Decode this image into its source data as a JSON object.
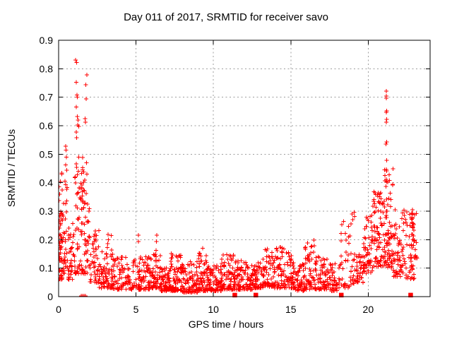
{
  "chart": {
    "title": "Day 011 of 2017, SRMTID for receiver savo",
    "xlabel": "GPS time / hours",
    "ylabel": "SRMTID / TECUs"
  },
  "chart_data": {
    "type": "scatter",
    "title": "Day 011 of 2017, SRMTID for receiver savo",
    "xlabel": "GPS time / hours",
    "ylabel": "SRMTID / TECUs",
    "xlim": [
      0,
      24
    ],
    "ylim": [
      0,
      0.9
    ],
    "x_tick_values": [
      0,
      5,
      10,
      15,
      20
    ],
    "x_tick_labels": [
      "0",
      "5",
      "10",
      "15",
      "20"
    ],
    "y_tick_values": [
      0,
      0.1,
      0.2,
      0.3,
      0.4,
      0.5,
      0.6,
      0.7,
      0.8,
      0.9
    ],
    "y_tick_labels": [
      "0",
      "0.1",
      "0.2",
      "0.3",
      "0.4",
      "0.5",
      "0.6",
      "0.7",
      "0.8",
      "0.9"
    ],
    "grid": true,
    "legend": "none",
    "marker": "plus",
    "colors": {
      "marker": "#ff0000",
      "grid": "#9e9e9e",
      "frame": "#000000",
      "background": "#ffffff"
    },
    "seed": 42,
    "density_bands": [
      [
        0.0,
        0.25,
        0.06,
        0.34,
        50,
        1.8
      ],
      [
        0.02,
        0.3,
        0.15,
        0.47,
        12,
        1.0
      ],
      [
        0.25,
        0.6,
        0.08,
        0.33,
        28,
        1.5
      ],
      [
        0.4,
        0.55,
        0.3,
        0.47,
        6,
        1.0
      ],
      [
        0.6,
        1.0,
        0.06,
        0.26,
        35,
        1.8
      ],
      [
        1.0,
        2.0,
        0.08,
        0.47,
        95,
        2.0
      ],
      [
        1.05,
        1.9,
        0.3,
        0.47,
        15,
        1.0
      ],
      [
        2.0,
        2.6,
        0.05,
        0.24,
        50,
        2.0
      ],
      [
        2.6,
        3.5,
        0.03,
        0.18,
        75,
        2.0
      ],
      [
        3.5,
        5.0,
        0.025,
        0.14,
        100,
        2.0
      ],
      [
        5.0,
        6.0,
        0.025,
        0.14,
        85,
        2.0
      ],
      [
        6.0,
        6.6,
        0.03,
        0.17,
        55,
        2.0
      ],
      [
        6.6,
        7.2,
        0.02,
        0.1,
        65,
        1.8
      ],
      [
        7.2,
        7.9,
        0.02,
        0.155,
        75,
        2.0
      ],
      [
        7.9,
        9.0,
        0.015,
        0.125,
        95,
        2.0
      ],
      [
        9.0,
        9.6,
        0.02,
        0.16,
        60,
        2.0
      ],
      [
        9.6,
        10.5,
        0.02,
        0.11,
        85,
        1.8
      ],
      [
        10.5,
        11.5,
        0.025,
        0.15,
        85,
        2.0
      ],
      [
        11.5,
        12.5,
        0.025,
        0.13,
        85,
        2.0
      ],
      [
        12.5,
        13.2,
        0.03,
        0.12,
        60,
        1.8
      ],
      [
        13.2,
        13.9,
        0.035,
        0.17,
        60,
        1.8
      ],
      [
        13.9,
        14.6,
        0.03,
        0.175,
        60,
        1.8
      ],
      [
        14.6,
        15.3,
        0.03,
        0.165,
        55,
        1.8
      ],
      [
        15.3,
        15.9,
        0.02,
        0.12,
        50,
        1.8
      ],
      [
        15.9,
        16.6,
        0.025,
        0.2,
        60,
        2.0
      ],
      [
        16.6,
        17.4,
        0.025,
        0.145,
        60,
        1.8
      ],
      [
        17.4,
        18.2,
        0.02,
        0.12,
        50,
        1.8
      ],
      [
        18.2,
        19.2,
        0.03,
        0.3,
        50,
        2.0
      ],
      [
        19.2,
        19.7,
        0.05,
        0.16,
        35,
        1.6
      ],
      [
        19.7,
        20.3,
        0.08,
        0.3,
        55,
        1.6
      ],
      [
        20.3,
        21.0,
        0.1,
        0.37,
        75,
        1.5
      ],
      [
        21.0,
        21.6,
        0.1,
        0.45,
        80,
        1.5
      ],
      [
        21.6,
        22.3,
        0.07,
        0.31,
        60,
        1.7
      ],
      [
        22.3,
        23.0,
        0.06,
        0.31,
        50,
        1.7
      ],
      [
        22.8,
        22.95,
        0.2,
        0.31,
        8,
        1.0
      ],
      [
        22.95,
        23.15,
        0.13,
        0.3,
        12,
        1.2
      ]
    ],
    "outlier_points": [
      [
        0.46,
        0.528
      ],
      [
        0.48,
        0.515
      ],
      [
        0.5,
        0.49
      ],
      [
        0.45,
        0.462
      ],
      [
        1.1,
        0.83
      ],
      [
        1.16,
        0.822
      ],
      [
        1.83,
        0.779
      ],
      [
        1.13,
        0.752
      ],
      [
        1.75,
        0.744
      ],
      [
        1.19,
        0.708
      ],
      [
        1.22,
        0.7
      ],
      [
        1.79,
        0.694
      ],
      [
        1.14,
        0.666
      ],
      [
        1.2,
        0.632
      ],
      [
        1.7,
        0.625
      ],
      [
        1.26,
        0.62
      ],
      [
        1.73,
        0.613
      ],
      [
        1.24,
        0.603
      ],
      [
        1.31,
        0.598
      ],
      [
        1.13,
        0.578
      ],
      [
        1.17,
        0.558
      ],
      [
        1.3,
        0.49
      ],
      [
        1.56,
        0.488
      ],
      [
        1.8,
        0.47
      ],
      [
        1.87,
        0.265
      ],
      [
        3.2,
        0.218
      ],
      [
        3.22,
        0.2
      ],
      [
        3.18,
        0.186
      ],
      [
        3.4,
        0.215
      ],
      [
        5.16,
        0.216
      ],
      [
        5.16,
        0.193
      ],
      [
        6.34,
        0.216
      ],
      [
        6.33,
        0.193
      ],
      [
        9.3,
        0.17
      ],
      [
        14.3,
        0.174
      ],
      [
        16.5,
        0.198
      ],
      [
        16.52,
        0.178
      ],
      [
        18.95,
        0.29
      ],
      [
        19.0,
        0.27
      ],
      [
        18.9,
        0.255
      ],
      [
        21.18,
        0.722
      ],
      [
        21.18,
        0.704
      ],
      [
        21.16,
        0.697
      ],
      [
        21.2,
        0.652
      ],
      [
        21.17,
        0.647
      ],
      [
        21.19,
        0.622
      ],
      [
        21.16,
        0.612
      ],
      [
        21.2,
        0.543
      ],
      [
        21.15,
        0.536
      ],
      [
        21.19,
        0.479
      ],
      [
        21.17,
        0.446
      ],
      [
        21.2,
        0.404
      ],
      [
        22.85,
        0.305
      ],
      [
        22.85,
        0.29
      ],
      [
        22.86,
        0.275
      ],
      [
        22.84,
        0.26
      ],
      [
        22.85,
        0.245
      ]
    ],
    "axis_touch_points": [
      [
        1.47,
        0.002
      ],
      [
        1.55,
        0.002
      ],
      [
        1.65,
        0.002
      ],
      [
        1.73,
        0.002
      ]
    ],
    "zero_square_hours": [
      11.38,
      12.74,
      18.26,
      22.74
    ]
  }
}
